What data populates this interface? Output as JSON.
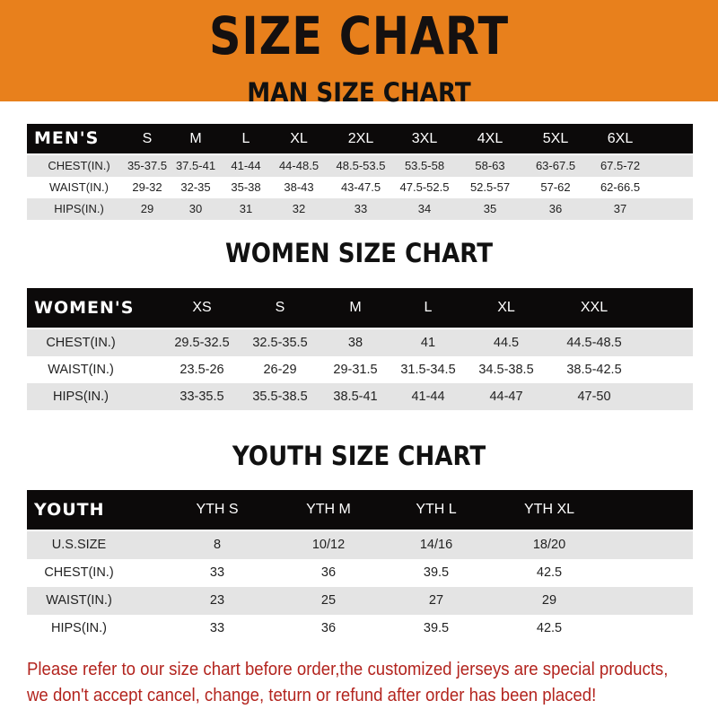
{
  "title": "SIZE CHART",
  "colors": {
    "banner": "#e8801c",
    "header_row": "#0c0a0a",
    "alt_row": "#e4e4e4",
    "note": "#b3241e"
  },
  "men": {
    "heading": "MAN SIZE CHART",
    "header": [
      "MEN'S",
      "S",
      "M",
      "L",
      "XL",
      "2XL",
      "3XL",
      "4XL",
      "5XL",
      "6XL"
    ],
    "rows": [
      [
        "CHEST(IN.)",
        "35-37.5",
        "37.5-41",
        "41-44",
        "44-48.5",
        "48.5-53.5",
        "53.5-58",
        "58-63",
        "63-67.5",
        "67.5-72"
      ],
      [
        "WAIST(IN.)",
        "29-32",
        "32-35",
        "35-38",
        "38-43",
        "43-47.5",
        "47.5-52.5",
        "52.5-57",
        "57-62",
        "62-66.5"
      ],
      [
        "HIPS(IN.)",
        "29",
        "30",
        "31",
        "32",
        "33",
        "34",
        "35",
        "36",
        "37"
      ]
    ]
  },
  "women": {
    "heading": "WOMEN SIZE CHART",
    "header": [
      "WOMEN'S",
      "XS",
      "S",
      "M",
      "L",
      "XL",
      "XXL"
    ],
    "rows": [
      [
        "CHEST(IN.)",
        "29.5-32.5",
        "32.5-35.5",
        "38",
        "41",
        "44.5",
        "44.5-48.5"
      ],
      [
        "WAIST(IN.)",
        "23.5-26",
        "26-29",
        "29-31.5",
        "31.5-34.5",
        "34.5-38.5",
        "38.5-42.5"
      ],
      [
        "HIPS(IN.)",
        "33-35.5",
        "35.5-38.5",
        "38.5-41",
        "41-44",
        "44-47",
        "47-50"
      ]
    ]
  },
  "youth": {
    "heading": "YOUTH SIZE CHART",
    "header": [
      "YOUTH",
      "YTH S",
      "YTH M",
      "YTH L",
      "YTH XL"
    ],
    "rows": [
      [
        "U.S.SIZE",
        "8",
        "10/12",
        "14/16",
        "18/20"
      ],
      [
        "CHEST(IN.)",
        "33",
        "36",
        "39.5",
        "42.5"
      ],
      [
        "WAIST(IN.)",
        "23",
        "25",
        "27",
        "29"
      ],
      [
        "HIPS(IN.)",
        "33",
        "36",
        "39.5",
        "42.5"
      ]
    ]
  },
  "note": [
    "Please refer to our size chart before order,the customized jerseys are special products,",
    "we don't accept cancel, change, teturn or refund after order has been placed!"
  ]
}
